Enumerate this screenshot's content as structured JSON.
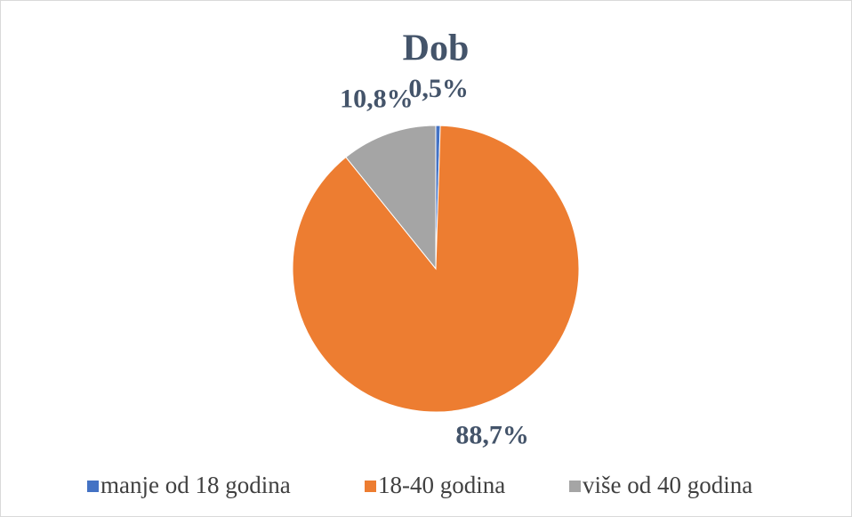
{
  "chart_data": {
    "type": "pie",
    "title": "Dob",
    "categories": [
      "manje od 18 godina",
      "18-40 godina",
      "više od 40 godina"
    ],
    "values": [
      0.5,
      88.7,
      10.8
    ],
    "value_labels": [
      "0,5%",
      "88,7%",
      "10,8%"
    ],
    "colors": [
      "#4472c4",
      "#ed7d31",
      "#a5a5a5"
    ],
    "legend": "bottom"
  }
}
